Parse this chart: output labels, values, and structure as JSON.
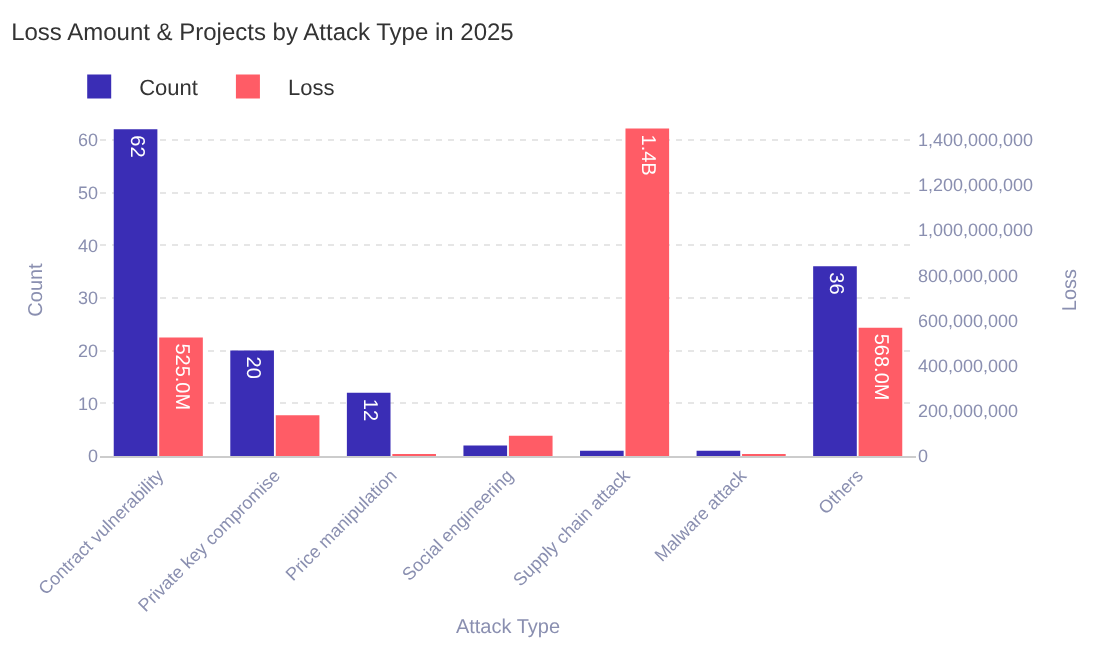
{
  "chart_data": {
    "type": "bar",
    "title": "Loss Amount & Projects by Attack Type in 2025",
    "xlabel": "Attack Type",
    "ylabel": "Count",
    "y2label": "Loss",
    "categories": [
      "Contract vulnerability",
      "Private key compromise",
      "Price manipulation",
      "Social engineering",
      "Supply chain attack",
      "Malware attack",
      "Others"
    ],
    "series": [
      {
        "name": "Count",
        "color": "#3a2db5",
        "values": [
          62,
          20,
          12,
          2,
          1,
          1,
          36
        ],
        "value_labels": [
          "62",
          "20",
          "12",
          null,
          null,
          null,
          "36"
        ]
      },
      {
        "name": "Loss",
        "color": "#ff5c66",
        "axis": "y2",
        "values": [
          525000000,
          180000000,
          5000000,
          90000000,
          1450000000,
          5000000,
          568000000
        ],
        "value_labels": [
          "525.0M",
          null,
          null,
          null,
          "1.4B",
          null,
          "568.0M"
        ]
      }
    ],
    "ylim": [
      0,
      63
    ],
    "yticks": [
      0,
      10,
      20,
      30,
      40,
      50,
      60
    ],
    "y2lim": [
      0,
      1470000000
    ],
    "y2ticks": [
      {
        "value": 0,
        "label": "0"
      },
      {
        "value": 200000000,
        "label": "200,000,000"
      },
      {
        "value": 400000000,
        "label": "400,000,000"
      },
      {
        "value": 600000000,
        "label": "600,000,000"
      },
      {
        "value": 800000000,
        "label": "800,000,000"
      },
      {
        "value": 1000000000,
        "label": "1,000,000,000"
      },
      {
        "value": 1200000000,
        "label": "1,200,000,000"
      },
      {
        "value": 1400000000,
        "label": "1,400,000,000"
      }
    ],
    "grid": "y",
    "legend": "top left"
  }
}
